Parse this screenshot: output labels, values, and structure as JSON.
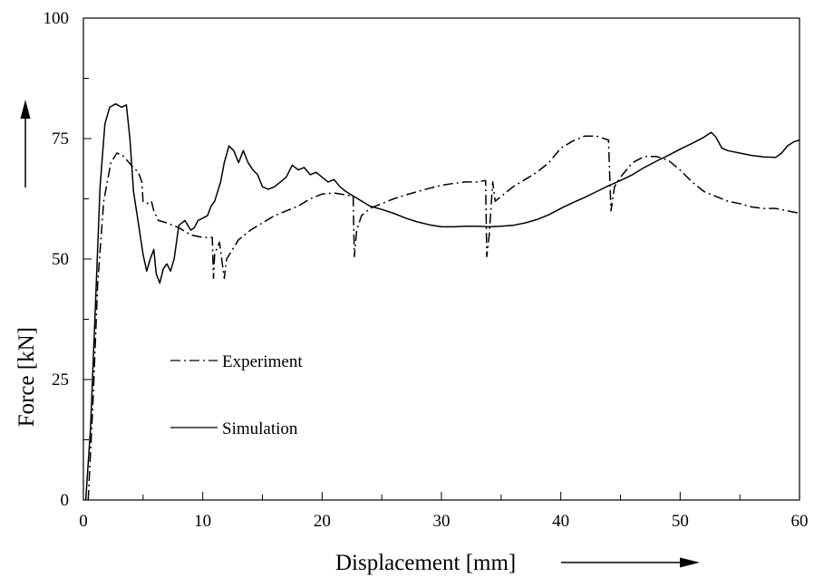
{
  "chart_data": {
    "type": "line",
    "xlabel": "Displacement [mm]",
    "ylabel": "Force [kN]",
    "xlim": [
      0,
      60
    ],
    "ylim": [
      0,
      100
    ],
    "x_ticks": [
      0,
      10,
      20,
      30,
      40,
      50,
      60
    ],
    "y_ticks": [
      0,
      25,
      50,
      75,
      100
    ],
    "x_tick_labels": [
      "0",
      "10",
      "20",
      "30",
      "40",
      "50",
      "60"
    ],
    "y_tick_labels": [
      "0",
      "25",
      "50",
      "75",
      "100"
    ],
    "grid": false,
    "legend_position": "center-left",
    "series": [
      {
        "name": "Experiment",
        "line_style": "dash-dot",
        "color": "#000000",
        "points": [
          [
            0.4,
            0
          ],
          [
            0.8,
            20
          ],
          [
            1.2,
            45
          ],
          [
            1.7,
            62
          ],
          [
            2.3,
            70
          ],
          [
            2.8,
            72
          ],
          [
            3.3,
            71.5
          ],
          [
            4.0,
            69.5
          ],
          [
            4.6,
            68
          ],
          [
            4.9,
            66
          ],
          [
            5.0,
            62
          ],
          [
            5.3,
            61.5
          ],
          [
            5.7,
            62
          ],
          [
            5.9,
            60
          ],
          [
            6.3,
            58
          ],
          [
            7.0,
            57.5
          ],
          [
            8.0,
            56.5
          ],
          [
            9.0,
            55
          ],
          [
            10.0,
            54.5
          ],
          [
            10.8,
            54.5
          ],
          [
            10.9,
            46
          ],
          [
            11.0,
            51
          ],
          [
            11.4,
            53.5
          ],
          [
            11.8,
            46
          ],
          [
            12.0,
            50
          ],
          [
            13.0,
            54
          ],
          [
            14.0,
            56
          ],
          [
            15.0,
            57.5
          ],
          [
            16.0,
            59
          ],
          [
            17.0,
            60
          ],
          [
            18.0,
            61
          ],
          [
            19.0,
            62.5
          ],
          [
            20.0,
            63.5
          ],
          [
            21.0,
            63.7
          ],
          [
            22.0,
            63.3
          ],
          [
            22.6,
            63
          ],
          [
            22.7,
            50.5
          ],
          [
            22.9,
            56
          ],
          [
            23.3,
            59
          ],
          [
            24.0,
            60.5
          ],
          [
            25.0,
            61.5
          ],
          [
            26.0,
            62.5
          ],
          [
            27.0,
            63.3
          ],
          [
            28.0,
            64
          ],
          [
            29.0,
            64.7
          ],
          [
            30.0,
            65.3
          ],
          [
            31.0,
            65.7
          ],
          [
            32.0,
            66
          ],
          [
            33.0,
            66
          ],
          [
            33.7,
            66.3
          ],
          [
            33.8,
            50.5
          ],
          [
            34.0,
            55
          ],
          [
            34.3,
            66
          ],
          [
            34.5,
            62
          ],
          [
            35.0,
            63
          ],
          [
            36.0,
            65
          ],
          [
            37.0,
            66.5
          ],
          [
            38.0,
            68
          ],
          [
            39.0,
            70
          ],
          [
            40.0,
            73
          ],
          [
            41.0,
            74.5
          ],
          [
            42.0,
            75.5
          ],
          [
            43.0,
            75.5
          ],
          [
            44.0,
            74.7
          ],
          [
            44.2,
            60
          ],
          [
            44.5,
            65
          ],
          [
            45.0,
            67
          ],
          [
            46.0,
            70
          ],
          [
            47.0,
            71.3
          ],
          [
            48.0,
            71.3
          ],
          [
            49.0,
            70.5
          ],
          [
            50.0,
            68.5
          ],
          [
            51.0,
            66
          ],
          [
            52.0,
            64
          ],
          [
            53.0,
            63
          ],
          [
            54.0,
            62
          ],
          [
            55.0,
            61.5
          ],
          [
            56.0,
            60.8
          ],
          [
            57.0,
            60.5
          ],
          [
            58.0,
            60.5
          ],
          [
            59.0,
            60
          ],
          [
            60.0,
            59.5
          ]
        ]
      },
      {
        "name": "Simulation",
        "line_style": "solid",
        "color": "#000000",
        "points": [
          [
            0.2,
            0
          ],
          [
            0.6,
            15
          ],
          [
            1.0,
            40
          ],
          [
            1.4,
            65
          ],
          [
            1.8,
            78
          ],
          [
            2.2,
            81.5
          ],
          [
            2.7,
            82.2
          ],
          [
            3.2,
            81.5
          ],
          [
            3.6,
            82
          ],
          [
            3.9,
            75
          ],
          [
            4.2,
            64
          ],
          [
            4.6,
            57.5
          ],
          [
            5.0,
            51
          ],
          [
            5.3,
            47.5
          ],
          [
            5.6,
            50
          ],
          [
            5.9,
            52
          ],
          [
            6.1,
            47
          ],
          [
            6.4,
            45
          ],
          [
            6.7,
            48
          ],
          [
            7.0,
            49
          ],
          [
            7.3,
            47.5
          ],
          [
            7.6,
            50
          ],
          [
            8.0,
            57
          ],
          [
            8.5,
            58
          ],
          [
            9.0,
            56
          ],
          [
            9.3,
            56.5
          ],
          [
            9.6,
            58
          ],
          [
            10.0,
            58.5
          ],
          [
            10.4,
            59
          ],
          [
            10.7,
            61
          ],
          [
            11.0,
            62
          ],
          [
            11.5,
            66
          ],
          [
            11.8,
            70
          ],
          [
            12.2,
            73.5
          ],
          [
            12.6,
            72.5
          ],
          [
            13.0,
            70
          ],
          [
            13.4,
            72.5
          ],
          [
            13.8,
            70
          ],
          [
            14.2,
            68.5
          ],
          [
            14.6,
            67.5
          ],
          [
            15.0,
            65
          ],
          [
            15.5,
            64.5
          ],
          [
            16.0,
            65
          ],
          [
            16.5,
            66
          ],
          [
            17.0,
            67
          ],
          [
            17.5,
            69.5
          ],
          [
            18.0,
            68.5
          ],
          [
            18.5,
            69
          ],
          [
            19.0,
            67.5
          ],
          [
            19.5,
            68
          ],
          [
            20.0,
            67
          ],
          [
            20.5,
            66
          ],
          [
            21.0,
            66.5
          ],
          [
            21.5,
            65
          ],
          [
            22.0,
            64
          ],
          [
            23.0,
            62.5
          ],
          [
            24.0,
            61
          ],
          [
            25.0,
            60.3
          ],
          [
            26.0,
            59.5
          ],
          [
            27.0,
            58.5
          ],
          [
            28.0,
            57.7
          ],
          [
            29.0,
            57.1
          ],
          [
            30.0,
            56.7
          ],
          [
            31.0,
            56.7
          ],
          [
            32.0,
            56.8
          ],
          [
            33.0,
            56.8
          ],
          [
            34.0,
            56.7
          ],
          [
            35.0,
            56.8
          ],
          [
            36.0,
            57
          ],
          [
            37.0,
            57.5
          ],
          [
            38.0,
            58.2
          ],
          [
            39.0,
            59.2
          ],
          [
            40.0,
            60.5
          ],
          [
            41.0,
            61.7
          ],
          [
            42.0,
            62.8
          ],
          [
            43.0,
            64
          ],
          [
            44.0,
            65.2
          ],
          [
            45.0,
            66.3
          ],
          [
            46.0,
            67.5
          ],
          [
            47.0,
            69
          ],
          [
            48.0,
            70.3
          ],
          [
            49.0,
            71.5
          ],
          [
            50.0,
            72.8
          ],
          [
            51.0,
            74
          ],
          [
            52.0,
            75.3
          ],
          [
            52.6,
            76.3
          ],
          [
            53.0,
            75.3
          ],
          [
            53.5,
            73
          ],
          [
            54.0,
            72.5
          ],
          [
            55.0,
            72
          ],
          [
            56.0,
            71.5
          ],
          [
            57.0,
            71.2
          ],
          [
            58.0,
            71.1
          ],
          [
            58.5,
            72
          ],
          [
            59.0,
            73.5
          ],
          [
            59.5,
            74.3
          ],
          [
            60.0,
            74.7
          ]
        ]
      }
    ]
  }
}
